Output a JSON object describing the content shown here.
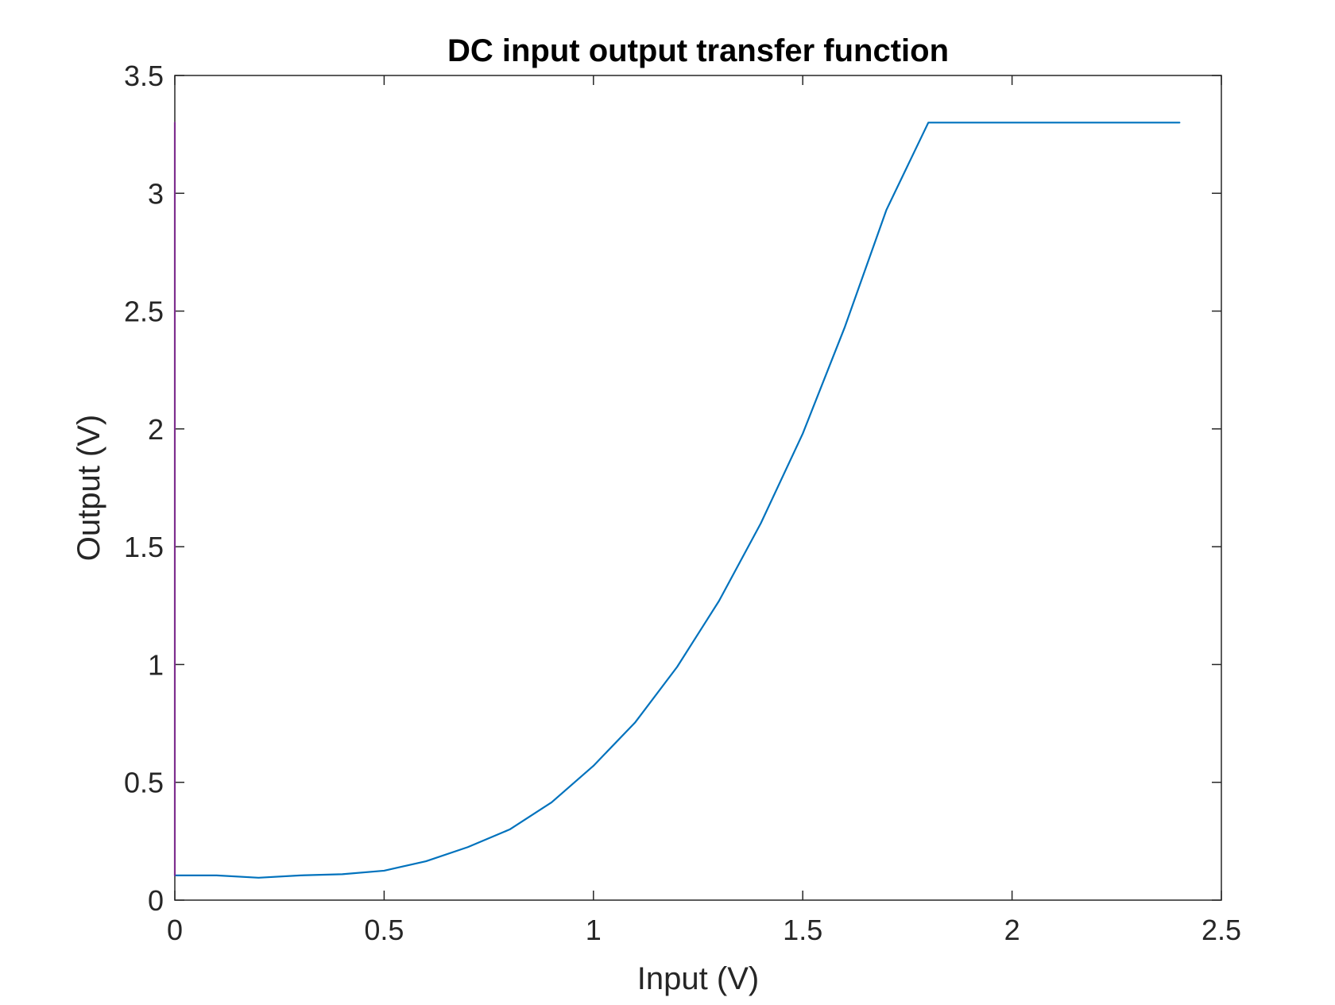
{
  "chart_data": {
    "type": "line",
    "title": "DC input output transfer function",
    "xlabel": "Input (V)",
    "ylabel": "Output (V)",
    "xlim": [
      0,
      2.5
    ],
    "ylim": [
      0,
      3.5
    ],
    "xticks": [
      "0",
      "0.5",
      "1",
      "1.5",
      "2",
      "2.5"
    ],
    "yticks": [
      "0",
      "0.5",
      "1",
      "1.5",
      "2",
      "2.5",
      "3",
      "3.5"
    ],
    "grid": false,
    "series": [
      {
        "color": "#0072BD",
        "x": [
          0,
          0.1,
          0.2,
          0.3,
          0.4,
          0.5,
          0.6,
          0.7,
          0.8,
          0.9,
          1.0,
          1.1,
          1.2,
          1.3,
          1.4,
          1.5,
          1.6,
          1.7,
          1.8,
          1.9,
          2.0,
          2.1,
          2.2,
          2.3,
          2.4
        ],
        "y": [
          0.105,
          0.105,
          0.095,
          0.105,
          0.11,
          0.125,
          0.165,
          0.225,
          0.3,
          0.415,
          0.57,
          0.755,
          0.99,
          1.27,
          1.6,
          1.98,
          2.43,
          2.93,
          3.3,
          3.3,
          3.3,
          3.3,
          3.3,
          3.3,
          3.3
        ]
      },
      {
        "color": "#7E2F8E",
        "x": [
          0,
          0
        ],
        "y": [
          0.105,
          3.3
        ]
      }
    ]
  }
}
